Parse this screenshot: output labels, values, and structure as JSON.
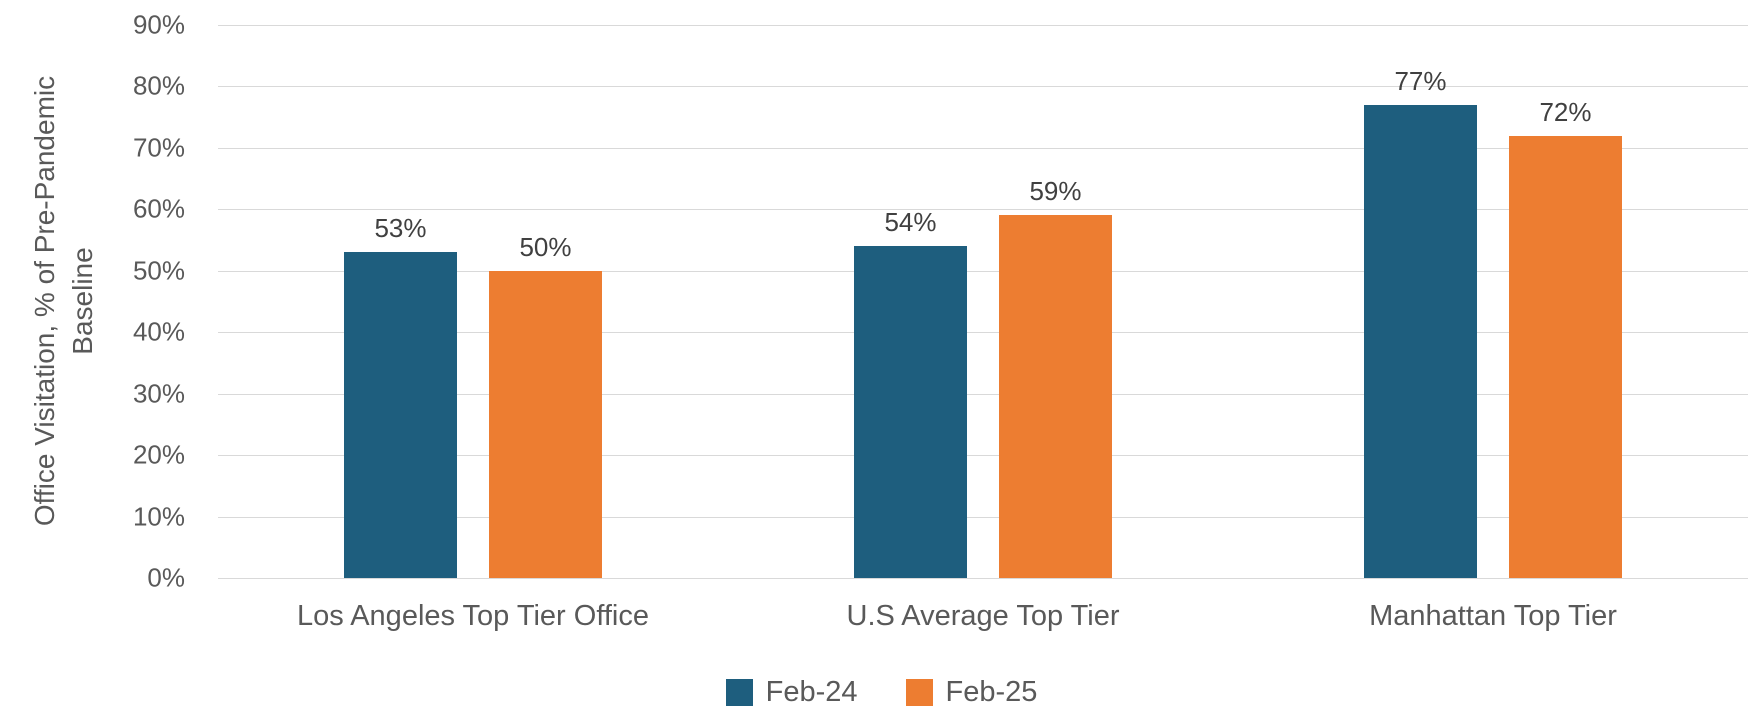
{
  "chart_data": {
    "type": "bar",
    "title": "",
    "categories": [
      "Los Angeles Top Tier Office",
      "U.S Average Top Tier",
      "Manhattan Top Tier"
    ],
    "series": [
      {
        "name": "Feb-24",
        "color": "#1E5E7E",
        "values": [
          53,
          54,
          77
        ],
        "labels": [
          "53%",
          "54%",
          "77%"
        ]
      },
      {
        "name": "Feb-25",
        "color": "#ED7D31",
        "values": [
          50,
          59,
          72
        ],
        "labels": [
          "50%",
          "59%",
          "72%"
        ]
      }
    ],
    "ylabel": "Office Visitation, % of Pre-Pandemic\nBaseline",
    "xlabel": "",
    "ylim": [
      0,
      90
    ],
    "ytick_step": 10,
    "yticks": [
      "90%",
      "80%",
      "70%",
      "60%",
      "50%",
      "40%",
      "30%",
      "20%",
      "10%",
      "0%"
    ],
    "grid": true,
    "legend_position": "bottom"
  },
  "colors": {
    "grid": "#D9D9D9",
    "axis_text": "#595959",
    "data_label": "#404040"
  }
}
